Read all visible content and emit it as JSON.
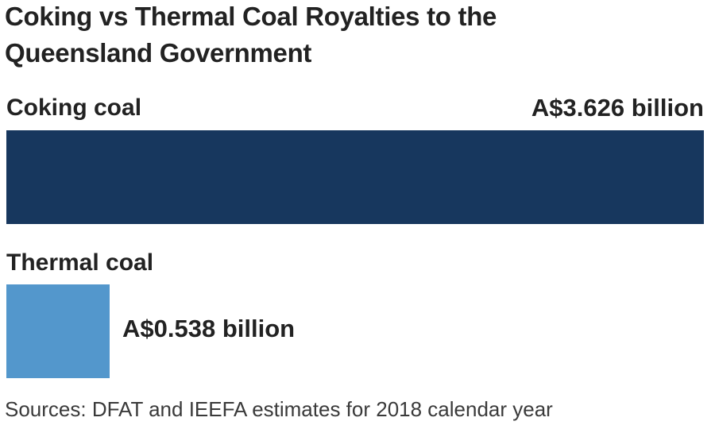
{
  "chart_data": {
    "type": "bar",
    "orientation": "horizontal",
    "title_lines": [
      "Coking vs Thermal Coal Royalties to the",
      "Queensland Government"
    ],
    "title": "Coking vs Thermal Coal Royalties to the Queensland Government",
    "categories": [
      "Coking coal",
      "Thermal coal"
    ],
    "values": [
      3.626,
      0.538
    ],
    "value_labels": [
      "A$3.626 billion",
      "A$0.538 billion"
    ],
    "unit": "A$ billion",
    "colors": [
      "#17375e",
      "#5397cc"
    ],
    "xlim": [
      0,
      3.626
    ],
    "grid": false,
    "legend": "none",
    "source": "Sources: DFAT and IEEFA estimates for 2018 calendar year"
  }
}
